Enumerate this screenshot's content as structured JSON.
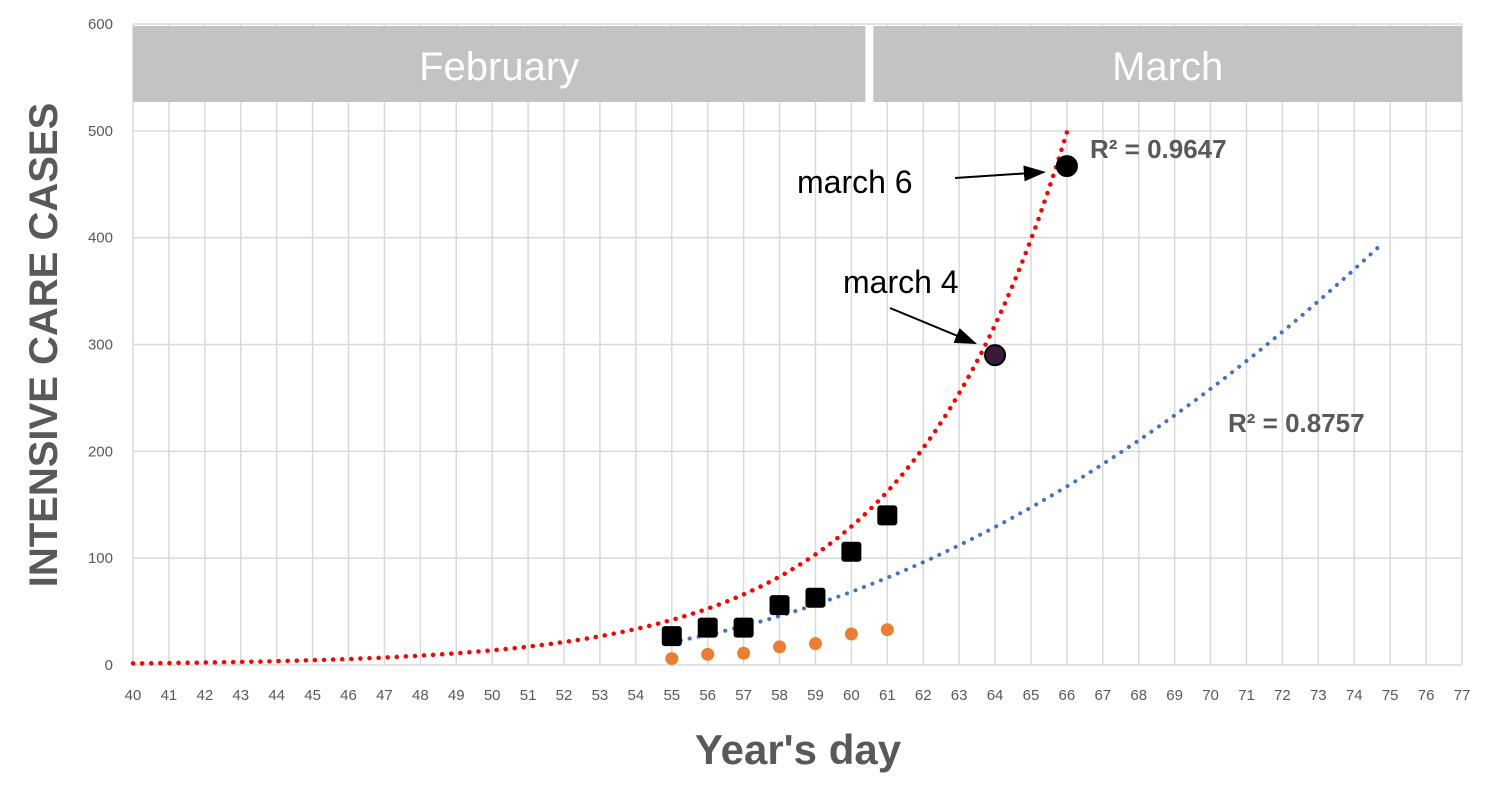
{
  "chart_data": {
    "type": "scatter",
    "xlabel": "Year's day",
    "ylabel": "INTENSIVE CARE CASES",
    "xlim": [
      40,
      77
    ],
    "ylim": [
      0,
      600
    ],
    "x_ticks": [
      40,
      41,
      42,
      43,
      44,
      45,
      46,
      47,
      48,
      49,
      50,
      51,
      52,
      53,
      54,
      55,
      56,
      57,
      58,
      59,
      60,
      61,
      62,
      63,
      64,
      65,
      66,
      67,
      68,
      69,
      70,
      71,
      72,
      73,
      74,
      75,
      76,
      77
    ],
    "y_ticks": [
      0,
      100,
      200,
      300,
      400,
      500,
      600
    ],
    "grid": true,
    "legend": "none",
    "month_bands": [
      {
        "label": "February",
        "x_start": 40,
        "x_end": 60.5
      },
      {
        "label": "March",
        "x_start": 60.5,
        "x_end": 77
      }
    ],
    "series": [
      {
        "role": "observed-squares",
        "marker": "square",
        "color": "#000000",
        "points": [
          [
            55,
            27
          ],
          [
            56,
            35
          ],
          [
            57,
            35
          ],
          [
            58,
            56
          ],
          [
            59,
            63
          ],
          [
            60,
            106
          ],
          [
            61,
            140
          ]
        ]
      },
      {
        "role": "observed-circles",
        "marker": "circle",
        "color": "#ED7D31",
        "points": [
          [
            55,
            6
          ],
          [
            56,
            10
          ],
          [
            57,
            11
          ],
          [
            58,
            17
          ],
          [
            59,
            20
          ],
          [
            60,
            29
          ],
          [
            61,
            33
          ]
        ]
      }
    ],
    "trendlines": [
      {
        "role": "exponential",
        "color": "#FF0000",
        "style": "dotted",
        "equation": {
          "a": 0.0001826,
          "b": 0.22455
        },
        "x_range": [
          40,
          66
        ],
        "r2_label": "R² = 0.9647"
      },
      {
        "role": "quadratic",
        "color": "#4472C4",
        "style": "dotted",
        "equation": {
          "c": 21.5,
          "d": 0.64
        },
        "x_range": [
          55,
          74.8
        ],
        "r2_label": "R² = 0.8757"
      }
    ],
    "highlighted_points": [
      {
        "x": 64,
        "y": 290,
        "color": "#3A1A3A",
        "label": "march 4"
      },
      {
        "x": 66,
        "y": 467,
        "color": "#000000",
        "label": "march 6"
      }
    ],
    "colors": {
      "grid": "#D9D9D9",
      "band_fill": "#C3C3C3",
      "text": "#595959"
    }
  }
}
